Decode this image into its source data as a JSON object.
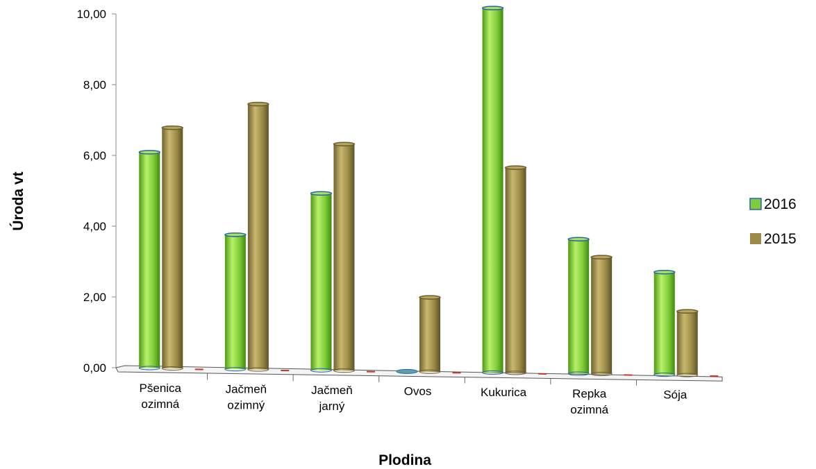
{
  "chart_data": {
    "type": "bar",
    "title": "",
    "xlabel": "Plodina",
    "ylabel": "Úroda vt",
    "ylim": [
      0,
      10
    ],
    "yticks": [
      "0,00",
      "2,00",
      "4,00",
      "6,00",
      "8,00",
      "10,00"
    ],
    "categories": [
      [
        "Pšenica",
        "ozimná"
      ],
      [
        "Jačmeň",
        "ozimný"
      ],
      [
        "Jačmeň",
        "jarný"
      ],
      [
        "Ovos"
      ],
      [
        "Kukurica"
      ],
      [
        "Repka",
        "ozimná"
      ],
      [
        "Sója"
      ]
    ],
    "series": [
      {
        "name": "2016",
        "color": "#7FCC3A",
        "values": [
          6.1,
          3.8,
          5.0,
          0.0,
          10.3,
          3.8,
          2.9
        ]
      },
      {
        "name": "2015",
        "color": "#9C8B47",
        "values": [
          6.8,
          7.5,
          6.4,
          2.1,
          5.8,
          3.3,
          1.8
        ]
      }
    ],
    "legend_position": "right",
    "grid": false
  }
}
